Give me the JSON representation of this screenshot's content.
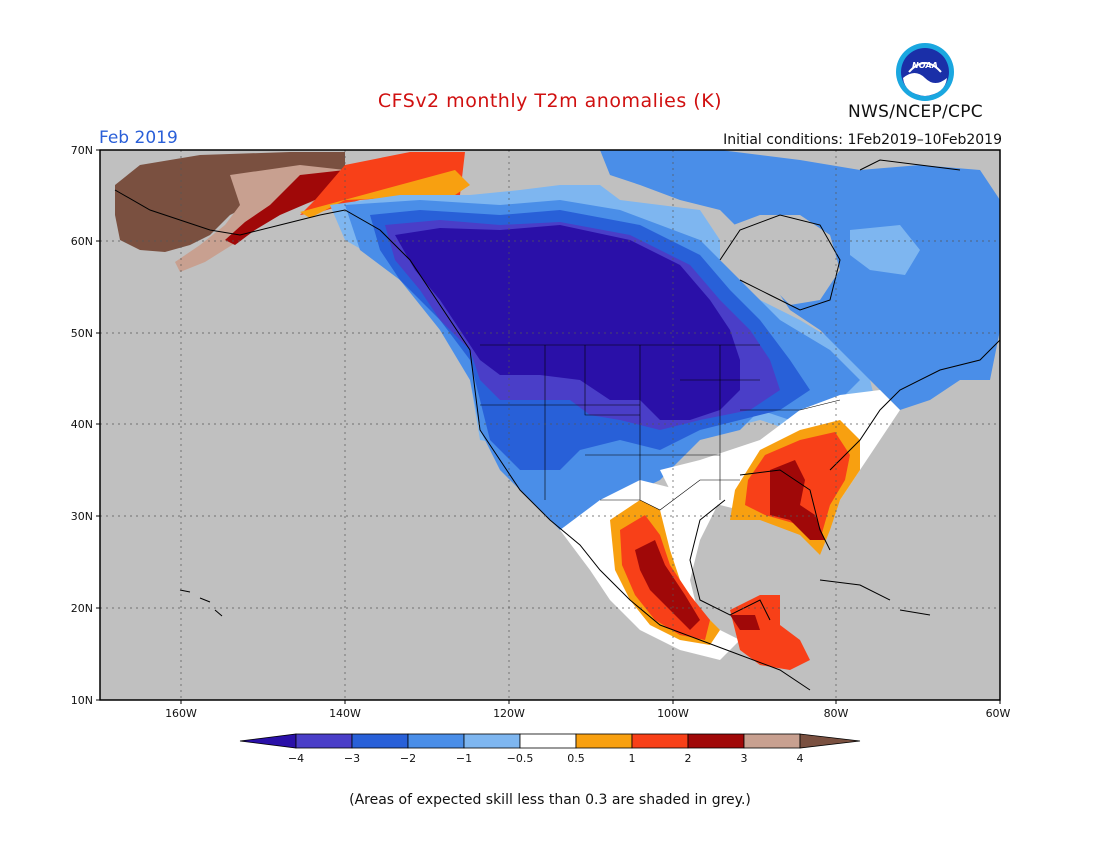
{
  "title": "CFSv2 monthly T2m anomalies (K)",
  "period": "Feb 2019",
  "initial_conditions": "Initial conditions:  1Feb2019–10Feb2019",
  "agency": "NWS/NCEP/CPC",
  "logo_text": "NOAA",
  "footnote": "(Areas of expected skill less than 0.3 are shaded in grey.)",
  "lat_labels": [
    "70N",
    "60N",
    "50N",
    "40N",
    "30N",
    "20N",
    "10N"
  ],
  "lon_labels": [
    "160W",
    "140W",
    "120W",
    "100W",
    "80W",
    "60W"
  ],
  "colorbar": {
    "labels": [
      "−4",
      "−3",
      "−2",
      "−1",
      "−0.5",
      "0.5",
      "1",
      "2",
      "3",
      "4"
    ],
    "colors": [
      "#2a10a8",
      "#4a3ec8",
      "#2860d8",
      "#4a8ee8",
      "#7eb6f0",
      "#ffffff",
      "#f8a010",
      "#f84018",
      "#a00808",
      "#c8a090",
      "#7a5040"
    ]
  },
  "palette": {
    "grey": "#c0c0c0",
    "border": "#000000"
  }
}
